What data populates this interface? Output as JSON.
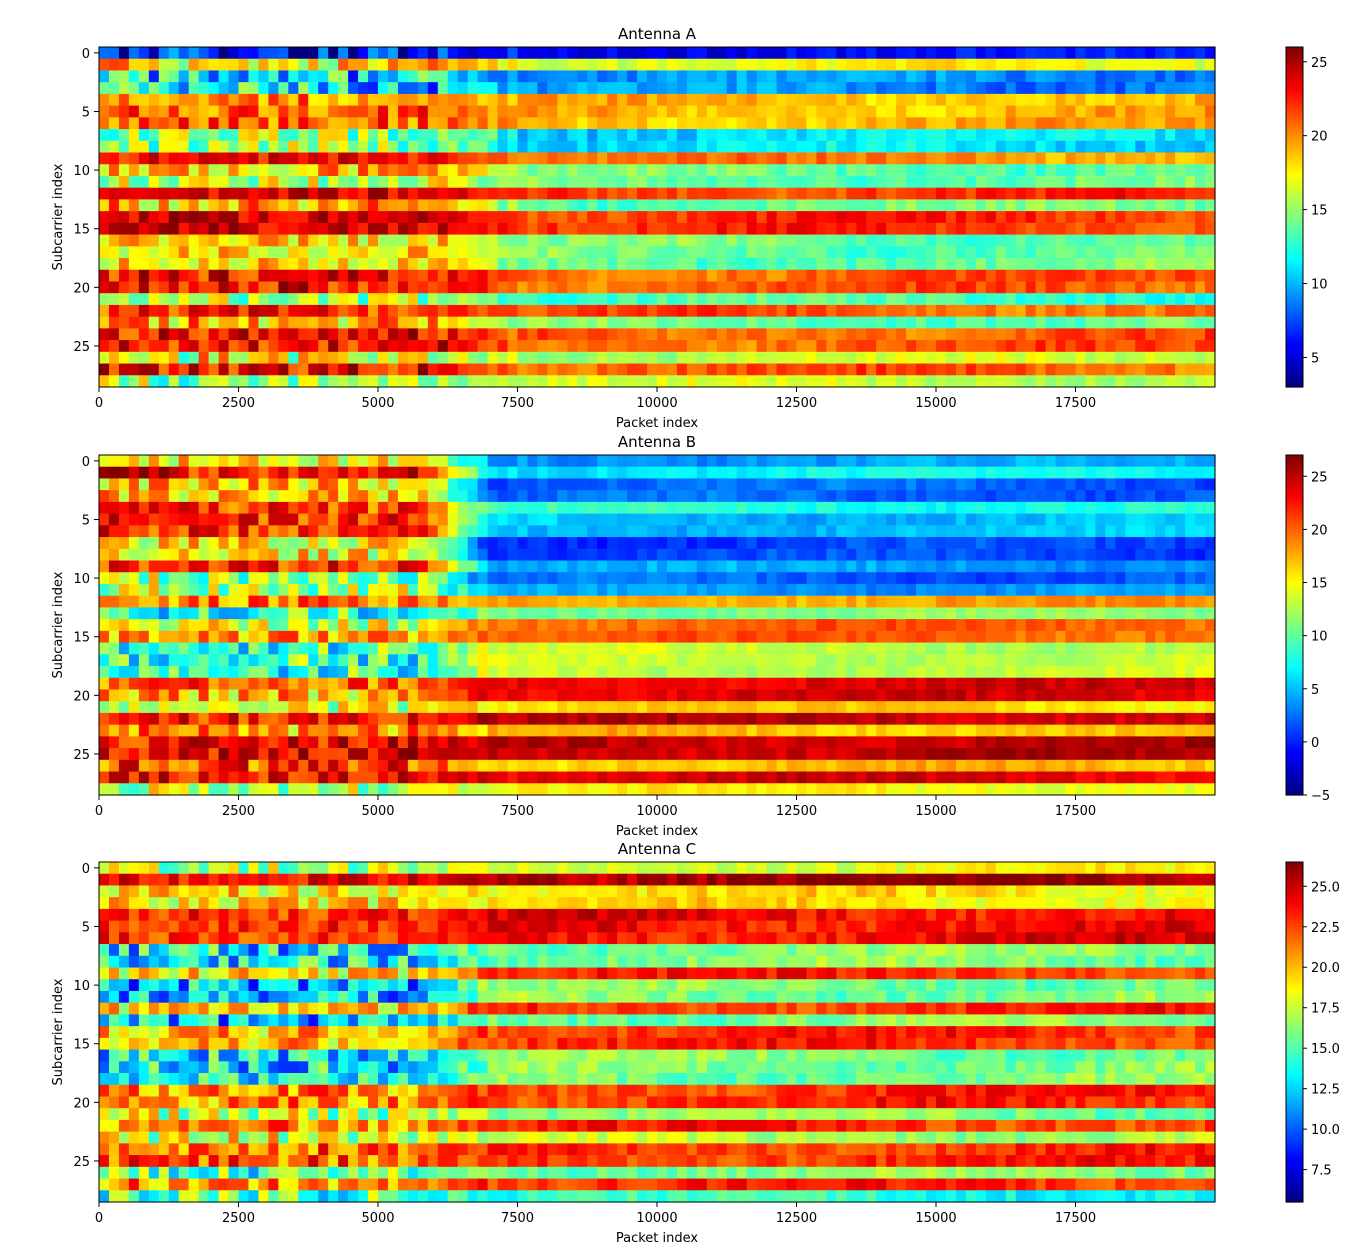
{
  "chart_data": [
    {
      "type": "heatmap",
      "title": "Antenna A",
      "xlabel": "Packet index",
      "ylabel": "Subcarrier index",
      "x_range": [
        0,
        20000
      ],
      "y_range": [
        0,
        29
      ],
      "x_ticks": [
        0,
        2500,
        5000,
        7500,
        10000,
        12500,
        15000,
        17500
      ],
      "x_tick_labels": [
        "0",
        "2500",
        "5000",
        "7500",
        "10000",
        "12500",
        "15000",
        "17500"
      ],
      "y_ticks": [
        0,
        5,
        10,
        15,
        20,
        25
      ],
      "y_tick_labels": [
        "0",
        "5",
        "10",
        "15",
        "20",
        "25"
      ],
      "colormap": "jet",
      "value_range": [
        3,
        26
      ],
      "colorbar_ticks": [
        5,
        10,
        15,
        20,
        25
      ],
      "colorbar_tick_labels": [
        "5",
        "10",
        "15",
        "20",
        "25"
      ],
      "transition_packet": 6800,
      "rows_early": [
        6,
        18,
        11,
        11,
        20,
        21,
        21,
        15,
        15,
        23,
        19,
        16,
        24,
        19,
        24,
        24,
        18,
        18,
        18,
        23,
        23,
        15,
        22,
        19,
        23,
        23,
        17,
        23,
        15
      ],
      "rows_late": [
        6,
        17,
        9,
        9,
        19,
        19,
        19,
        11,
        11,
        20,
        14,
        14,
        22,
        14,
        22,
        22,
        14,
        14,
        14,
        21,
        21,
        13,
        21,
        14,
        21,
        21,
        16,
        21,
        16
      ],
      "row_noise_early": [
        4,
        4,
        5,
        5,
        3,
        3,
        3,
        4,
        4,
        2,
        4,
        4,
        2,
        4,
        2,
        2,
        3,
        3,
        3,
        3,
        3,
        4,
        3,
        4,
        3,
        3,
        5,
        3,
        4
      ]
    },
    {
      "type": "heatmap",
      "title": "Antenna B",
      "xlabel": "Packet index",
      "ylabel": "Subcarrier index",
      "x_range": [
        0,
        20000
      ],
      "y_range": [
        0,
        29
      ],
      "x_ticks": [
        0,
        2500,
        5000,
        7500,
        10000,
        12500,
        15000,
        17500
      ],
      "x_tick_labels": [
        "0",
        "2500",
        "5000",
        "7500",
        "10000",
        "12500",
        "15000",
        "17500"
      ],
      "y_ticks": [
        0,
        5,
        10,
        15,
        20,
        25
      ],
      "y_tick_labels": [
        "0",
        "5",
        "10",
        "15",
        "20",
        "25"
      ],
      "colormap": "jet",
      "value_range": [
        -5,
        27
      ],
      "colorbar_ticks": [
        -5,
        0,
        5,
        10,
        15,
        20,
        25
      ],
      "colorbar_tick_labels": [
        "−5",
        "0",
        "5",
        "10",
        "15",
        "20",
        "25"
      ],
      "transition_packet": 6300,
      "rows_early": [
        15,
        23,
        17,
        17,
        21,
        22,
        22,
        15,
        15,
        22,
        12,
        12,
        19,
        8,
        14,
        18,
        9,
        9,
        9,
        20,
        17,
        14,
        22,
        18,
        23,
        24,
        21,
        23,
        13
      ],
      "rows_late": [
        4,
        7,
        2,
        2,
        8,
        5,
        5,
        1,
        1,
        4,
        2,
        4,
        18,
        11,
        20,
        20,
        13,
        13,
        13,
        24,
        24,
        16,
        25,
        17,
        25,
        25,
        17,
        24,
        15
      ],
      "row_noise_early": [
        5,
        4,
        5,
        5,
        4,
        4,
        4,
        5,
        5,
        4,
        6,
        6,
        4,
        6,
        5,
        4,
        6,
        6,
        6,
        4,
        5,
        5,
        4,
        5,
        4,
        4,
        5,
        4,
        5
      ]
    },
    {
      "type": "heatmap",
      "title": "Antenna C",
      "xlabel": "Packet index",
      "ylabel": "Subcarrier index",
      "x_range": [
        0,
        20000
      ],
      "y_range": [
        0,
        29
      ],
      "x_ticks": [
        0,
        2500,
        5000,
        7500,
        10000,
        12500,
        15000,
        17500
      ],
      "x_tick_labels": [
        "0",
        "2500",
        "5000",
        "7500",
        "10000",
        "12500",
        "15000",
        "17500"
      ],
      "y_ticks": [
        0,
        5,
        10,
        15,
        20,
        25
      ],
      "y_tick_labels": [
        "0",
        "5",
        "10",
        "15",
        "20",
        "25"
      ],
      "colormap": "jet",
      "value_range": [
        5.5,
        26.5
      ],
      "colorbar_ticks": [
        7.5,
        10.0,
        12.5,
        15.0,
        17.5,
        20.0,
        22.5,
        25.0
      ],
      "colorbar_tick_labels": [
        "7.5",
        "10.0",
        "12.5",
        "15.0",
        "17.5",
        "20.0",
        "22.5",
        "25.0"
      ],
      "transition_packet": 6300,
      "rows_early": [
        17,
        24,
        19,
        19,
        23,
        23,
        23,
        13,
        13,
        19,
        12,
        12,
        19,
        12,
        20,
        20,
        13,
        13,
        13,
        21,
        21,
        17,
        21,
        18,
        22,
        22,
        15,
        21,
        15
      ],
      "rows_late": [
        18,
        26,
        19,
        19,
        24,
        24,
        24,
        16,
        16,
        23,
        16,
        16,
        23,
        16,
        23,
        23,
        16,
        16,
        16,
        23,
        23,
        16,
        23,
        17,
        23,
        23,
        16,
        23,
        14
      ],
      "row_noise_early": [
        3,
        2,
        3,
        3,
        2,
        2,
        2,
        4,
        4,
        3,
        4,
        4,
        3,
        4,
        3,
        3,
        4,
        4,
        4,
        3,
        3,
        4,
        3,
        4,
        3,
        3,
        4,
        3,
        4
      ]
    }
  ]
}
